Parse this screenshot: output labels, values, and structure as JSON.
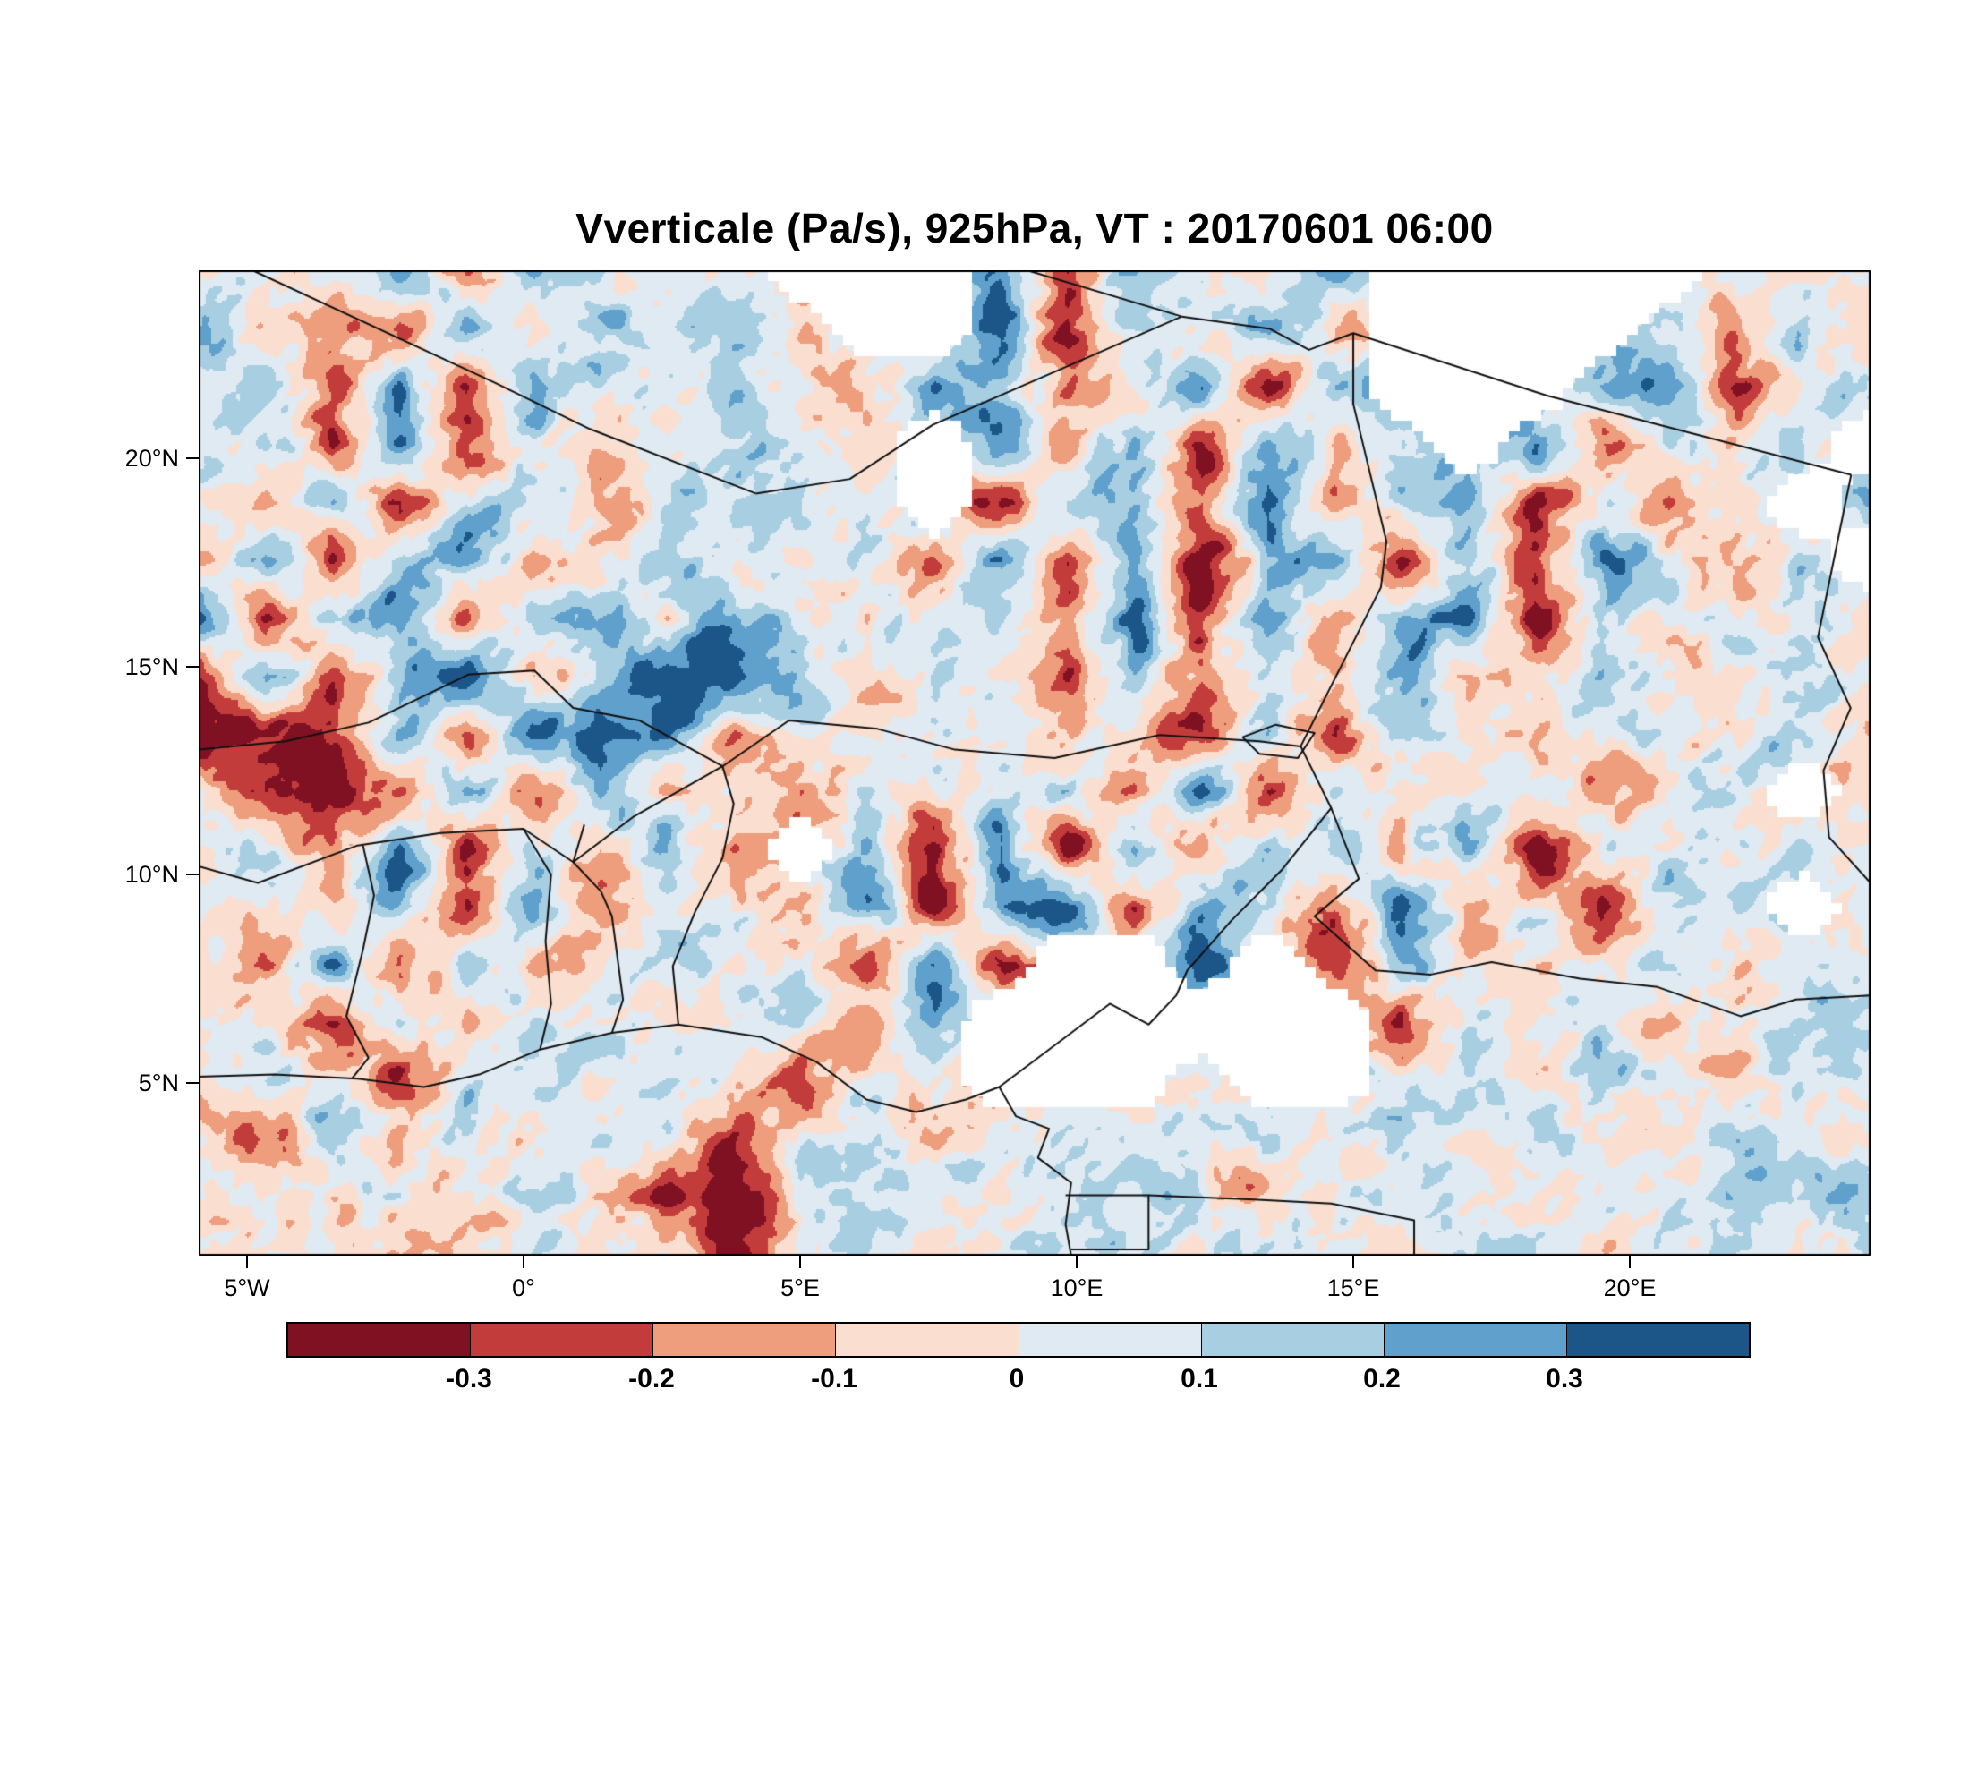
{
  "title": "Vverticale (Pa/s), 925hPa, VT : 20170601  06:00",
  "chart_data": {
    "type": "heatmap",
    "title": "Vverticale (Pa/s), 925hPa, VT : 20170601  06:00",
    "variable": "Vverticale",
    "units": "Pa/s",
    "level": "925hPa",
    "valid_time": "20170601 06:00",
    "x_tick_labels": [
      "5°W",
      "0°",
      "5°E",
      "10°E",
      "15°E",
      "20°E"
    ],
    "y_tick_labels": [
      "20°N",
      "15°N",
      "10°N",
      "5°N"
    ],
    "lon_range": [
      -5.87,
      24.35
    ],
    "lat_range": [
      0.85,
      24.51
    ],
    "grid_on": false,
    "legend_position": "bottom",
    "missing_color": "#ffffff",
    "colorbar": {
      "tick_labels": [
        "-0.3",
        "-0.2",
        "-0.1",
        "0",
        "0.1",
        "0.2",
        "0.3"
      ],
      "levels": [
        -0.3,
        -0.2,
        -0.1,
        0,
        0.1,
        0.2,
        0.3
      ],
      "colors": [
        "#7f1123",
        "#c33c3c",
        "#ee9d7d",
        "#fadfd1",
        "#dfeaf2",
        "#a8cee2",
        "#5fa0cc",
        "#1c5689"
      ]
    },
    "grid": {
      "note": "coarse approximation of omega field, rows north-to-south, null = missing/white",
      "lon_start": -5.87,
      "lon_step": 1.232,
      "lat_start": 24.51,
      "lat_step": -1.406,
      "values": [
        [
          0.1,
          0.05,
          -0.1,
          0.2,
          -0.25,
          0.15,
          0.1,
          0.05,
          0.1,
          null,
          null,
          null,
          0.3,
          -0.3,
          0.1,
          0.05,
          -0.1,
          0.2,
          null,
          null,
          null,
          null,
          null,
          0.1,
          -0.05,
          0.1
        ],
        [
          0.12,
          0.05,
          -0.2,
          -0.35,
          0.25,
          -0.1,
          0.1,
          0.05,
          0.1,
          -0.15,
          null,
          null,
          0.35,
          -0.3,
          0.1,
          0.05,
          0.2,
          -0.1,
          null,
          null,
          null,
          null,
          0.15,
          -0.2,
          0.15,
          -0.1
        ],
        [
          0.1,
          0.15,
          -0.3,
          0.3,
          -0.35,
          0.2,
          0.05,
          -0.05,
          0.1,
          0.05,
          -0.2,
          0.3,
          0.1,
          -0.1,
          0.05,
          0.3,
          -0.35,
          0.15,
          null,
          null,
          null,
          0.2,
          0.3,
          -0.25,
          0.05,
          0.1
        ],
        [
          0.05,
          0.2,
          -0.35,
          0.35,
          -0.2,
          0.1,
          -0.1,
          0.05,
          0.1,
          0.05,
          -0.05,
          null,
          0.3,
          -0.1,
          0.2,
          -0.3,
          0.35,
          -0.2,
          0.1,
          null,
          0.3,
          -0.35,
          0.1,
          -0.1,
          0.05,
          null
        ],
        [
          0.15,
          -0.1,
          0.3,
          -0.35,
          0.15,
          0.05,
          -0.15,
          0.1,
          0.05,
          0.1,
          -0.05,
          null,
          -0.35,
          0.15,
          0.1,
          -0.3,
          0.35,
          -0.2,
          0.1,
          0.3,
          -0.35,
          0.1,
          -0.1,
          0.05,
          null,
          0.1
        ],
        [
          -0.2,
          0.3,
          -0.35,
          0.2,
          0.35,
          -0.1,
          0.05,
          0.1,
          -0.05,
          0.05,
          0.1,
          -0.15,
          0.3,
          -0.35,
          0.2,
          -0.35,
          0.15,
          0.35,
          -0.3,
          0.2,
          -0.2,
          0.3,
          0.05,
          -0.1,
          0.1,
          null
        ],
        [
          0.35,
          -0.35,
          0.2,
          0.35,
          -0.25,
          0.15,
          0.2,
          -0.1,
          0.3,
          0.1,
          -0.05,
          0.1,
          0.05,
          -0.2,
          0.35,
          -0.35,
          0.25,
          -0.15,
          0.2,
          0.35,
          -0.3,
          0.1,
          0.05,
          -0.05,
          0.1,
          -0.1
        ],
        [
          -0.35,
          0.25,
          -0.3,
          0.15,
          0.35,
          -0.2,
          0.1,
          0.4,
          0.4,
          0.15,
          -0.1,
          0.1,
          0.05,
          -0.35,
          0.25,
          -0.2,
          0.1,
          -0.1,
          0.2,
          -0.15,
          0.05,
          0.1,
          -0.05,
          0.05,
          0.1,
          0.05
        ],
        [
          -0.4,
          -0.4,
          -0.3,
          0.2,
          -0.35,
          0.3,
          0.35,
          0.3,
          -0.2,
          0.1,
          -0.05,
          0.05,
          0.1,
          -0.1,
          0.05,
          -0.3,
          0.2,
          -0.35,
          0.1,
          0.05,
          -0.1,
          0.1,
          0.05,
          -0.05,
          0.1,
          -0.05
        ],
        [
          0.1,
          -0.35,
          -0.4,
          -0.2,
          0.3,
          -0.3,
          0.2,
          -0.1,
          0.05,
          -0.15,
          0.1,
          -0.05,
          0.05,
          0.1,
          -0.2,
          0.3,
          -0.3,
          0.15,
          -0.1,
          0.05,
          0.1,
          -0.15,
          0.05,
          0.1,
          null,
          0.05
        ],
        [
          0.05,
          0.1,
          -0.2,
          0.3,
          -0.35,
          0.2,
          -0.1,
          0.3,
          -0.2,
          null,
          0.1,
          -0.3,
          0.35,
          -0.4,
          0.3,
          -0.2,
          0.1,
          0.05,
          -0.1,
          0.2,
          -0.3,
          0.1,
          0.05,
          -0.05,
          0.1,
          0.05
        ],
        [
          0.1,
          0.05,
          -0.1,
          0.2,
          -0.3,
          0.35,
          -0.2,
          0.1,
          0.05,
          -0.1,
          0.3,
          -0.4,
          0.35,
          0.4,
          -0.3,
          0.2,
          0.1,
          -0.2,
          0.3,
          -0.1,
          0.05,
          -0.3,
          0.1,
          0.05,
          null,
          0.05
        ],
        [
          0.05,
          -0.2,
          0.3,
          -0.35,
          0.2,
          -0.1,
          0.05,
          0.1,
          -0.05,
          0.1,
          -0.2,
          0.3,
          -0.35,
          null,
          null,
          0.35,
          null,
          -0.3,
          0.1,
          0.05,
          -0.1,
          0.05,
          0.1,
          -0.05,
          0.05,
          0.1
        ],
        [
          0.1,
          0.05,
          -0.3,
          0.2,
          -0.2,
          0.1,
          0.05,
          -0.05,
          0.05,
          0.1,
          -0.1,
          0.2,
          null,
          null,
          null,
          null,
          null,
          null,
          -0.35,
          0.1,
          -0.05,
          0.1,
          -0.1,
          0.05,
          0.1,
          0.05
        ],
        [
          -0.1,
          0.05,
          0.1,
          -0.25,
          0.1,
          0.05,
          -0.05,
          0.1,
          0.05,
          -0.2,
          0.1,
          0.05,
          null,
          null,
          null,
          0.05,
          null,
          null,
          0.05,
          0.1,
          -0.05,
          0.05,
          0.1,
          -0.05,
          0.05,
          0.1
        ],
        [
          -0.05,
          -0.3,
          0.1,
          -0.2,
          0.05,
          -0.05,
          0.1,
          0.05,
          -0.35,
          0.1,
          0.05,
          -0.05,
          0.1,
          0.05,
          0.1,
          -0.05,
          0.05,
          0.1,
          0.05,
          -0.05,
          0.1,
          0.05,
          -0.05,
          0.1,
          0.05,
          -0.05
        ],
        [
          -0.05,
          0.05,
          -0.1,
          0.05,
          -0.05,
          0.05,
          -0.05,
          -0.35,
          -0.4,
          0.05,
          0.1,
          0.05,
          -0.05,
          0.05,
          0.1,
          0.05,
          -0.05,
          0.05,
          0.1,
          0.05,
          -0.05,
          0.05,
          -0.05,
          0.05,
          0.1,
          0.05
        ],
        [
          -0.05,
          -0.05,
          0.05,
          -0.05,
          -0.05,
          0.05,
          -0.05,
          0.05,
          -0.3,
          0.1,
          0.05,
          -0.05,
          0.05,
          0.1,
          0.05,
          -0.05,
          0.05,
          0.05,
          -0.05,
          0.05,
          0.05,
          -0.05,
          0.05,
          0.05,
          -0.05,
          0.05
        ]
      ]
    }
  }
}
